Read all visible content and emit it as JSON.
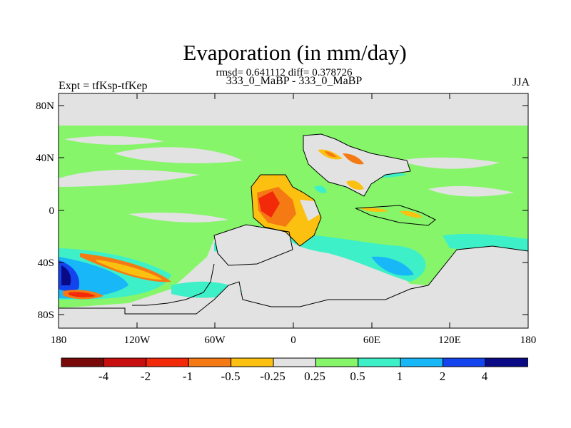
{
  "title": "Evaporation (in mm/day)",
  "stats_line": "rmsd= 0.641112 diff= 0.378726",
  "runs_line": "333_0_MaBP - 333_0_MaBP",
  "left_label": "Expt = tfKsp-tfKep",
  "right_label": "JJA",
  "map": {
    "lat_ticks": [
      "80N",
      "40N",
      "0",
      "40S",
      "80S"
    ],
    "lon_ticks": [
      "180",
      "120W",
      "60W",
      "0",
      "60E",
      "120E",
      "180"
    ]
  },
  "colorbar": {
    "labels": [
      "-4",
      "-2",
      "-1",
      "-0.5",
      "-0.25",
      "0.25",
      "0.5",
      "1",
      "2",
      "4"
    ],
    "colors": [
      "#7a0a0a",
      "#c80f0f",
      "#f22a0a",
      "#f57a14",
      "#fcc010",
      "#e2e2e2",
      "#86f56a",
      "#3ef0c8",
      "#18b8f8",
      "#1444ee",
      "#0a0a86"
    ]
  }
}
